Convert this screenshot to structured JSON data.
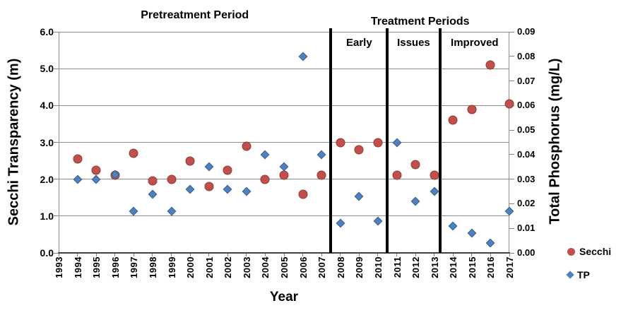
{
  "chart_data": {
    "type": "scatter",
    "xlabel": "Year",
    "x_ticks": [
      1993,
      1994,
      1995,
      1996,
      1997,
      1998,
      1999,
      2000,
      2001,
      2002,
      2003,
      2004,
      2005,
      2006,
      2007,
      2008,
      2009,
      2010,
      2011,
      2012,
      2013,
      2014,
      2015,
      2016,
      2017
    ],
    "left_axis": {
      "label": "Secchi Transparency (m)",
      "min": 0,
      "max": 6,
      "tick_values": [
        0,
        1,
        2,
        3,
        4,
        5,
        6
      ],
      "tick_labels": [
        "0.0",
        "1.0",
        "2.0",
        "3.0",
        "4.0",
        "5.0",
        "6.0"
      ]
    },
    "right_axis": {
      "label": "Total Phosphorus (mg/L)",
      "min": 0,
      "max": 0.09,
      "tick_values": [
        0,
        0.01,
        0.02,
        0.03,
        0.04,
        0.05,
        0.06,
        0.07,
        0.08,
        0.09
      ],
      "tick_labels": [
        "0.00",
        "0.01",
        "0.02",
        "0.03",
        "0.04",
        "0.05",
        "0.06",
        "0.07",
        "0.08",
        "0.09"
      ]
    },
    "grid": "horizontal",
    "legend_position": "right-bottom",
    "series": [
      {
        "name": "Secchi",
        "axis": "left",
        "marker": "circle",
        "color": "#c0504d",
        "x": [
          1994,
          1995,
          1996,
          1997,
          1998,
          1999,
          2000,
          2001,
          2002,
          2003,
          2004,
          2005,
          2006,
          2007,
          2008,
          2009,
          2010,
          2011,
          2012,
          2013,
          2014,
          2015,
          2016,
          2017
        ],
        "values": [
          2.55,
          2.25,
          2.1,
          2.7,
          1.95,
          2.0,
          2.5,
          1.8,
          2.25,
          2.9,
          2.0,
          2.1,
          1.6,
          2.1,
          3.0,
          2.8,
          3.0,
          2.1,
          2.4,
          2.1,
          3.6,
          3.9,
          5.1,
          4.05
        ]
      },
      {
        "name": "TP",
        "axis": "right",
        "marker": "diamond",
        "color": "#4f81bd",
        "x": [
          1994,
          1995,
          1996,
          1997,
          1998,
          1999,
          2000,
          2001,
          2002,
          2003,
          2004,
          2005,
          2006,
          2007,
          2008,
          2009,
          2010,
          2011,
          2012,
          2013,
          2014,
          2015,
          2016,
          2017
        ],
        "values": [
          0.03,
          0.03,
          0.032,
          0.017,
          0.024,
          0.017,
          0.026,
          0.035,
          0.026,
          0.025,
          0.04,
          0.035,
          0.08,
          0.04,
          0.012,
          0.023,
          0.013,
          0.045,
          0.021,
          0.025,
          0.011,
          0.008,
          0.004,
          0.017
        ]
      }
    ],
    "annotations": {
      "pretreatment": "Pretreatment Period",
      "treatment": "Treatment Periods",
      "periods": [
        "Early",
        "Issues",
        "Improved"
      ]
    },
    "dividers_x_year": [
      2007.5,
      2010.5,
      2013.3
    ],
    "divider_color": "#000000"
  },
  "legend": {
    "secchi": "Secchi",
    "tp": "TP"
  }
}
